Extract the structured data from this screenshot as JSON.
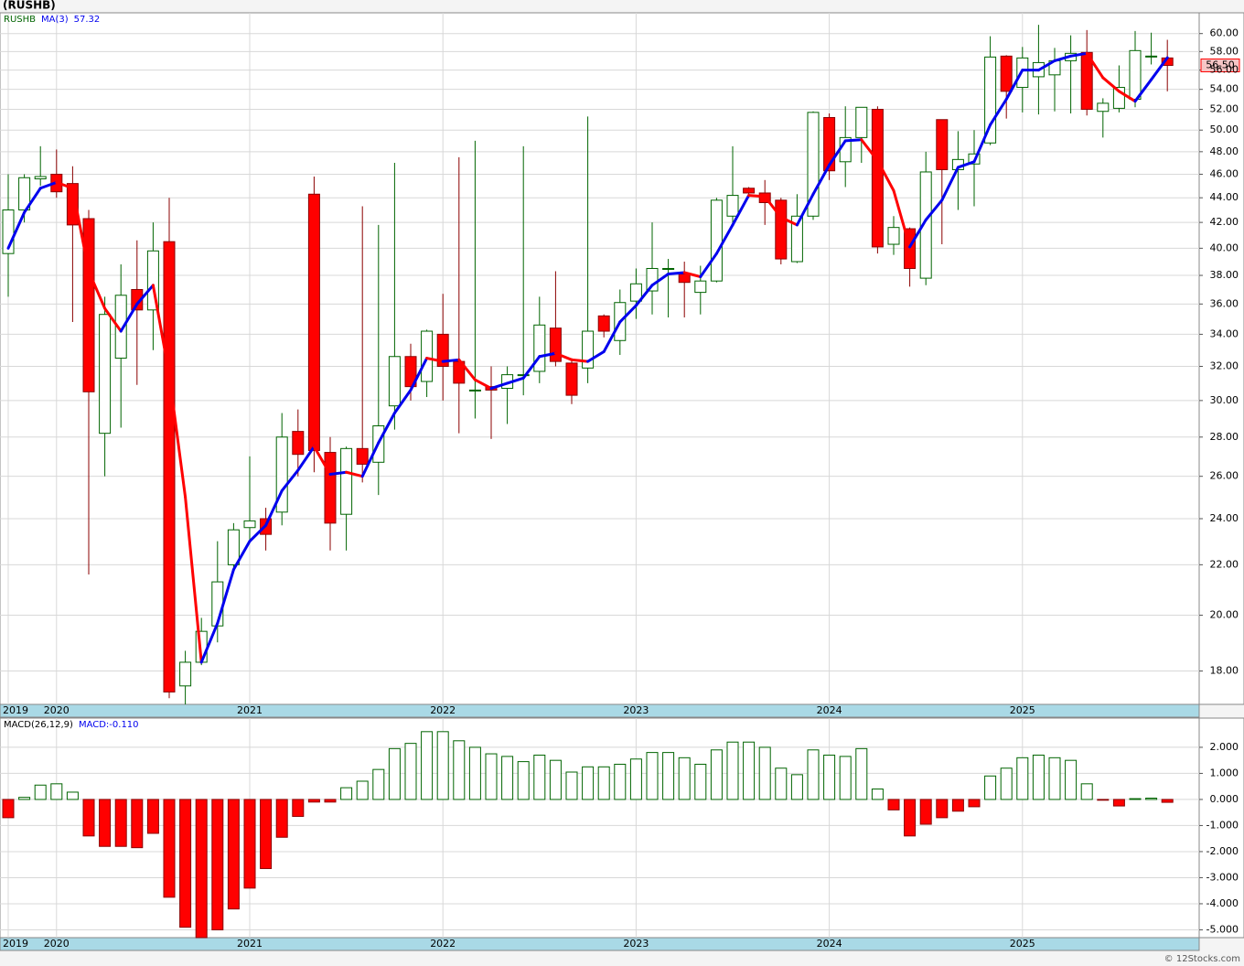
{
  "chart_data": [
    {
      "type": "candlestick",
      "title": "(RUSHB)",
      "name": "RUSHB",
      "categories": [
        "2019",
        null,
        null,
        "2020",
        null,
        null,
        null,
        null,
        null,
        null,
        null,
        null,
        null,
        null,
        null,
        "2021",
        null,
        null,
        null,
        null,
        null,
        null,
        null,
        null,
        null,
        null,
        null,
        "2022",
        null,
        null,
        null,
        null,
        null,
        null,
        null,
        null,
        null,
        null,
        null,
        "2023",
        null,
        null,
        null,
        null,
        null,
        null,
        null,
        null,
        null,
        null,
        null,
        "2024",
        null,
        null,
        null,
        null,
        null,
        null,
        null,
        null,
        null,
        null,
        null,
        "2025",
        null,
        null,
        null,
        null,
        null,
        null,
        null,
        null,
        null
      ],
      "open": [
        39.6,
        43,
        45.6,
        46,
        45.2,
        42.3,
        28.2,
        32.5,
        37,
        35.6,
        40.5,
        17.5,
        18.3,
        19.6,
        22,
        23.6,
        24,
        24.3,
        28.3,
        44.3,
        27.2,
        24.2,
        27.4,
        26.7,
        29.7,
        32.6,
        31.1,
        34,
        32.3,
        30.6,
        30.8,
        30.7,
        31.5,
        31.7,
        34.4,
        32.2,
        31.9,
        35.2,
        33.6,
        36.2,
        36.9,
        38.5,
        38.1,
        36.8,
        37.6,
        42.5,
        44.8,
        44.4,
        43.8,
        39,
        42.5,
        51.2,
        47.1,
        49.3,
        52,
        40.3,
        41.5,
        37.8,
        51,
        46.4,
        46.9,
        48.8,
        57.5,
        54.2,
        55.3,
        55.5,
        57,
        57.9,
        51.8,
        52.1,
        53,
        57.5,
        57.3
      ],
      "high": [
        46,
        46,
        48.5,
        48.2,
        46.7,
        43,
        36.5,
        38.8,
        40.6,
        42,
        44,
        18.7,
        19.9,
        23,
        23.8,
        27,
        24.5,
        29.3,
        29.5,
        45.8,
        28,
        27.5,
        43.3,
        41.8,
        47,
        33.4,
        34.3,
        36.7,
        47.5,
        49,
        32,
        32,
        48.5,
        36.5,
        38.3,
        32.5,
        51.3,
        35.3,
        37,
        38.5,
        42,
        39.2,
        39,
        38.7,
        44,
        48.5,
        44.9,
        45.5,
        44,
        44.3,
        51.8,
        51.6,
        52.3,
        52.2,
        52.3,
        42.5,
        41.6,
        48,
        51,
        49.9,
        50,
        59.7,
        57.6,
        58.5,
        61,
        58.4,
        59.8,
        60.4,
        53.1,
        56.5,
        60.3,
        60.1,
        59.3
      ],
      "low": [
        36.5,
        42,
        45,
        44,
        34.8,
        21.6,
        26,
        28.5,
        30.9,
        33,
        17.1,
        16.9,
        18.2,
        19,
        21.8,
        23,
        22.6,
        23.7,
        26,
        26.2,
        22.6,
        22.6,
        25.7,
        25.1,
        28.4,
        30,
        30.2,
        30,
        28.2,
        29,
        27.9,
        28.7,
        30.3,
        31,
        32,
        29.8,
        31,
        33.8,
        32.7,
        35,
        35.3,
        35.1,
        35.1,
        35.3,
        37.5,
        41.9,
        44,
        41.8,
        38.8,
        38.9,
        42.2,
        45.5,
        44.9,
        47,
        39.6,
        39.5,
        37.2,
        37.3,
        40.3,
        43,
        43.3,
        48.6,
        51.1,
        51.7,
        51.5,
        51.8,
        51.6,
        51.4,
        49.3,
        51.7,
        52.2,
        56.6,
        53.8
      ],
      "close": [
        43,
        45.7,
        45.8,
        44.5,
        41.8,
        30.5,
        35.3,
        36.6,
        35.6,
        39.8,
        17.3,
        18.3,
        19.4,
        21.3,
        23.5,
        23.9,
        23.3,
        28,
        27.1,
        27.3,
        23.8,
        27.4,
        26.6,
        28.6,
        32.6,
        30.8,
        34.2,
        32,
        31,
        30.6,
        30.6,
        31.5,
        31.5,
        34.6,
        32.3,
        30.3,
        34.2,
        34.2,
        36.1,
        37.4,
        38.5,
        38.5,
        37.5,
        37.6,
        43.8,
        44.2,
        44.4,
        43.6,
        39.2,
        42.5,
        51.7,
        46.3,
        49.3,
        52.2,
        40.1,
        41.6,
        38.5,
        46.2,
        46.4,
        47.3,
        47.8,
        57.4,
        53.8,
        57.3,
        56.8,
        57,
        57.8,
        52,
        52.6,
        54.2,
        58.1,
        57.5,
        56.5
      ],
      "last_value_label": "56.50",
      "up_color": "#006400",
      "down_color": "#ff0000",
      "log_scale": true,
      "grid": true,
      "ylim": [
        16.9,
        62.4
      ],
      "yticks": [
        {
          "value": 18,
          "label": "18.00"
        },
        {
          "value": 20,
          "label": "20.00"
        },
        {
          "value": 22,
          "label": "22.00"
        },
        {
          "value": 24,
          "label": "24.00"
        },
        {
          "value": 26,
          "label": "26.00"
        },
        {
          "value": 28,
          "label": "28.00"
        },
        {
          "value": 30,
          "label": "30.00"
        },
        {
          "value": 32,
          "label": "32.00"
        },
        {
          "value": 34,
          "label": "34.00"
        },
        {
          "value": 36,
          "label": "36.00"
        },
        {
          "value": 38,
          "label": "38.00"
        },
        {
          "value": 40,
          "label": "40.00"
        },
        {
          "value": 42,
          "label": "42.00"
        },
        {
          "value": 44,
          "label": "44.00"
        },
        {
          "value": 46,
          "label": "46.00"
        },
        {
          "value": 48,
          "label": "48.00"
        },
        {
          "value": 50,
          "label": "50.00"
        },
        {
          "value": 52,
          "label": "52.00"
        },
        {
          "value": 54,
          "label": "54.00"
        },
        {
          "value": 56,
          "label": "56.00"
        },
        {
          "value": 58,
          "label": "58.00"
        },
        {
          "value": 60,
          "label": "60.00"
        }
      ],
      "overlay": {
        "type": "line",
        "name": "MA(3)",
        "up_color": "#0000ee",
        "down_color": "#ff0000",
        "values": [
          40,
          42.8,
          44.8,
          45.3,
          44.8,
          38.3,
          35.7,
          34.2,
          36,
          37.3,
          31.5,
          25,
          18.3,
          19.7,
          21.8,
          23,
          23.7,
          25.3,
          26.3,
          27.5,
          26.1,
          26.2,
          26,
          27.7,
          29.3,
          30.6,
          32.5,
          32.3,
          32.4,
          31.2,
          30.7,
          31,
          31.3,
          32.6,
          32.8,
          32.4,
          32.3,
          32.9,
          34.8,
          35.9,
          37.3,
          38.1,
          38.2,
          37.9,
          39.6,
          41.8,
          44.2,
          44.1,
          42.4,
          41.8,
          44.3,
          46.8,
          49,
          49.1,
          47.2,
          44.6,
          40.1,
          42.2,
          43.8,
          46.6,
          47.1,
          50.5,
          53,
          56,
          56,
          57,
          57.5,
          57.8,
          55.2,
          53.8,
          52.8,
          55,
          57.32
        ]
      }
    },
    {
      "type": "bar",
      "name": "MACD(26,12,9)",
      "readout": "MACD:-0.110",
      "categories": [
        "2019",
        null,
        null,
        "2020",
        null,
        null,
        null,
        null,
        null,
        null,
        null,
        null,
        null,
        null,
        null,
        "2021",
        null,
        null,
        null,
        null,
        null,
        null,
        null,
        null,
        null,
        null,
        null,
        "2022",
        null,
        null,
        null,
        null,
        null,
        null,
        null,
        null,
        null,
        null,
        null,
        "2023",
        null,
        null,
        null,
        null,
        null,
        null,
        null,
        null,
        null,
        null,
        null,
        "2024",
        null,
        null,
        null,
        null,
        null,
        null,
        null,
        null,
        null,
        null,
        null,
        "2025",
        null,
        null,
        null,
        null,
        null,
        null,
        null,
        null,
        null
      ],
      "values": [
        -0.7,
        0.08,
        0.55,
        0.6,
        0.28,
        -1.4,
        -1.8,
        -1.8,
        -1.85,
        -1.3,
        -3.75,
        -4.9,
        -5.3,
        -5.0,
        -4.2,
        -3.4,
        -2.65,
        -1.45,
        -0.65,
        -0.1,
        -0.1,
        0.45,
        0.7,
        1.15,
        1.95,
        2.15,
        2.6,
        2.6,
        2.25,
        2.0,
        1.75,
        1.65,
        1.45,
        1.7,
        1.5,
        1.05,
        1.25,
        1.25,
        1.35,
        1.55,
        1.8,
        1.8,
        1.6,
        1.35,
        1.9,
        2.2,
        2.2,
        2.0,
        1.2,
        0.95,
        1.9,
        1.7,
        1.65,
        1.95,
        0.4,
        -0.4,
        -1.4,
        -0.95,
        -0.7,
        -0.45,
        -0.28,
        0.9,
        1.2,
        1.6,
        1.7,
        1.6,
        1.5,
        0.6,
        -0.03,
        -0.25,
        0.03,
        0.05,
        -0.11
      ],
      "up_color": "#006400",
      "down_color": "#ff0000",
      "readout_color": "#0000ee",
      "grid": true,
      "ylim": [
        -5.3,
        3.12
      ],
      "yticks": [
        {
          "value": 2,
          "label": "2.000"
        },
        {
          "value": 1,
          "label": "1.000"
        },
        {
          "value": 0,
          "label": "0.000"
        },
        {
          "value": -1,
          "label": "-1.000"
        },
        {
          "value": -2,
          "label": "-2.000"
        },
        {
          "value": -3,
          "label": "-3.000"
        },
        {
          "value": -4,
          "label": "-4.000"
        },
        {
          "value": -5,
          "label": "-5.000"
        }
      ]
    }
  ],
  "watermark": "© 12Stocks.com"
}
